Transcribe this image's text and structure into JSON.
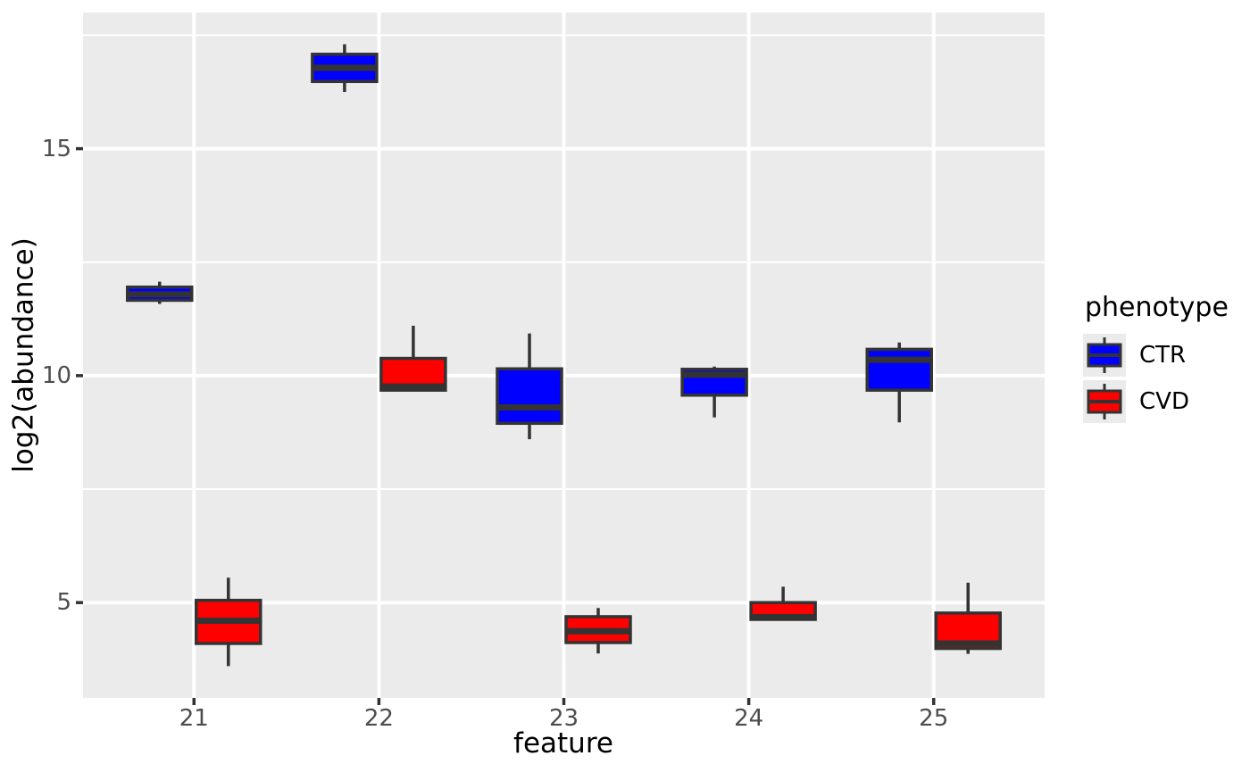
{
  "chart_data": {
    "type": "boxplot",
    "xlabel": "feature",
    "ylabel": "log2(abundance)",
    "categories": [
      "21",
      "22",
      "23",
      "24",
      "25"
    ],
    "y_ticks": [
      5,
      10,
      15
    ],
    "y_minor_ticks": [
      7.5,
      12.5,
      17.5
    ],
    "ylim": [
      2.9,
      18.0
    ],
    "grid": "major-and-minor",
    "legend": {
      "title": "phenotype",
      "position": "right"
    },
    "colors": {
      "panel_bg": "#EBEBEB",
      "gridline": "#FFFFFF",
      "box_border": "#333333",
      "tick_text": "#4D4D4D",
      "axis_title_text": "#000000"
    },
    "series": [
      {
        "name": "CTR",
        "fill": "#0000FF",
        "boxes": [
          {
            "category": "21",
            "whislo": 11.58,
            "q1": 11.66,
            "med": 11.79,
            "q3": 11.95,
            "whishi": 12.07
          },
          {
            "category": "22",
            "whislo": 16.25,
            "q1": 16.48,
            "med": 16.78,
            "q3": 17.08,
            "whishi": 17.3
          },
          {
            "category": "23",
            "whislo": 8.6,
            "q1": 8.95,
            "med": 9.3,
            "q3": 10.15,
            "whishi": 10.93
          },
          {
            "category": "24",
            "whislo": 9.08,
            "q1": 9.57,
            "med": 10.02,
            "q3": 10.14,
            "whishi": 10.2
          },
          {
            "category": "25",
            "whislo": 8.97,
            "q1": 9.68,
            "med": 10.35,
            "q3": 10.58,
            "whishi": 10.73
          }
        ]
      },
      {
        "name": "CVD",
        "fill": "#FF0000",
        "boxes": [
          {
            "category": "21",
            "whislo": 3.6,
            "q1": 4.1,
            "med": 4.6,
            "q3": 5.05,
            "whishi": 5.55
          },
          {
            "category": "22",
            "whislo": 9.68,
            "q1": 9.68,
            "med": 9.76,
            "q3": 10.38,
            "whishi": 11.1
          },
          {
            "category": "23",
            "whislo": 3.88,
            "q1": 4.12,
            "med": 4.37,
            "q3": 4.69,
            "whishi": 4.88
          },
          {
            "category": "24",
            "whislo": 4.6,
            "q1": 4.63,
            "med": 4.68,
            "q3": 5.0,
            "whishi": 5.35
          },
          {
            "category": "25",
            "whislo": 3.87,
            "q1": 3.99,
            "med": 4.1,
            "q3": 4.77,
            "whishi": 5.44
          }
        ]
      }
    ]
  }
}
